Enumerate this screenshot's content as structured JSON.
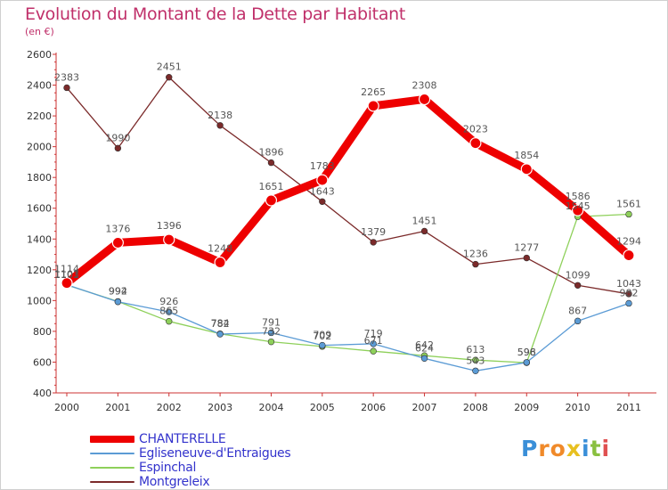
{
  "title": "Evolution du Montant de la Dette par Habitant",
  "subtitle": "(en €)",
  "logo": {
    "letters": [
      "P",
      "r",
      "o",
      "x",
      "i",
      "t",
      "i"
    ],
    "colors": [
      "#3a8fd8",
      "#f08a2a",
      "#f08a2a",
      "#e8c020",
      "#3a8fd8",
      "#8ac040",
      "#e05050"
    ]
  },
  "chart_data": {
    "type": "line",
    "x": [
      "2000",
      "2001",
      "2002",
      "2003",
      "2004",
      "2005",
      "2006",
      "2007",
      "2008",
      "2009",
      "2010",
      "2011"
    ],
    "ylim": [
      400,
      2600
    ],
    "yticks": [
      400,
      600,
      800,
      1000,
      1200,
      1400,
      1600,
      1800,
      2000,
      2200,
      2400,
      2600
    ],
    "grid": false,
    "legend_position": "bottom-left",
    "series": [
      {
        "name": "CHANTERELLE",
        "color": "#ee0000",
        "values": [
          1114,
          1376,
          1396,
          1248,
          1651,
          1783,
          2265,
          2308,
          2023,
          1854,
          1586,
          1294
        ]
      },
      {
        "name": "Egliseneuve-d'Entraigues",
        "color": "#5b9bd5",
        "values": [
          1103,
          992,
          926,
          782,
          791,
          709,
          719,
          624,
          543,
          598,
          867,
          982
        ]
      },
      {
        "name": "Espinchal",
        "color": "#8ed05a",
        "values": [
          1101,
          994,
          865,
          784,
          732,
          702,
          671,
          642,
          613,
          596,
          1545,
          1561
        ]
      },
      {
        "name": "Montgreleix",
        "color": "#7b2a2a",
        "values": [
          2383,
          1990,
          2451,
          2138,
          1896,
          1643,
          1379,
          1451,
          1236,
          1277,
          1099,
          1043
        ]
      }
    ]
  }
}
